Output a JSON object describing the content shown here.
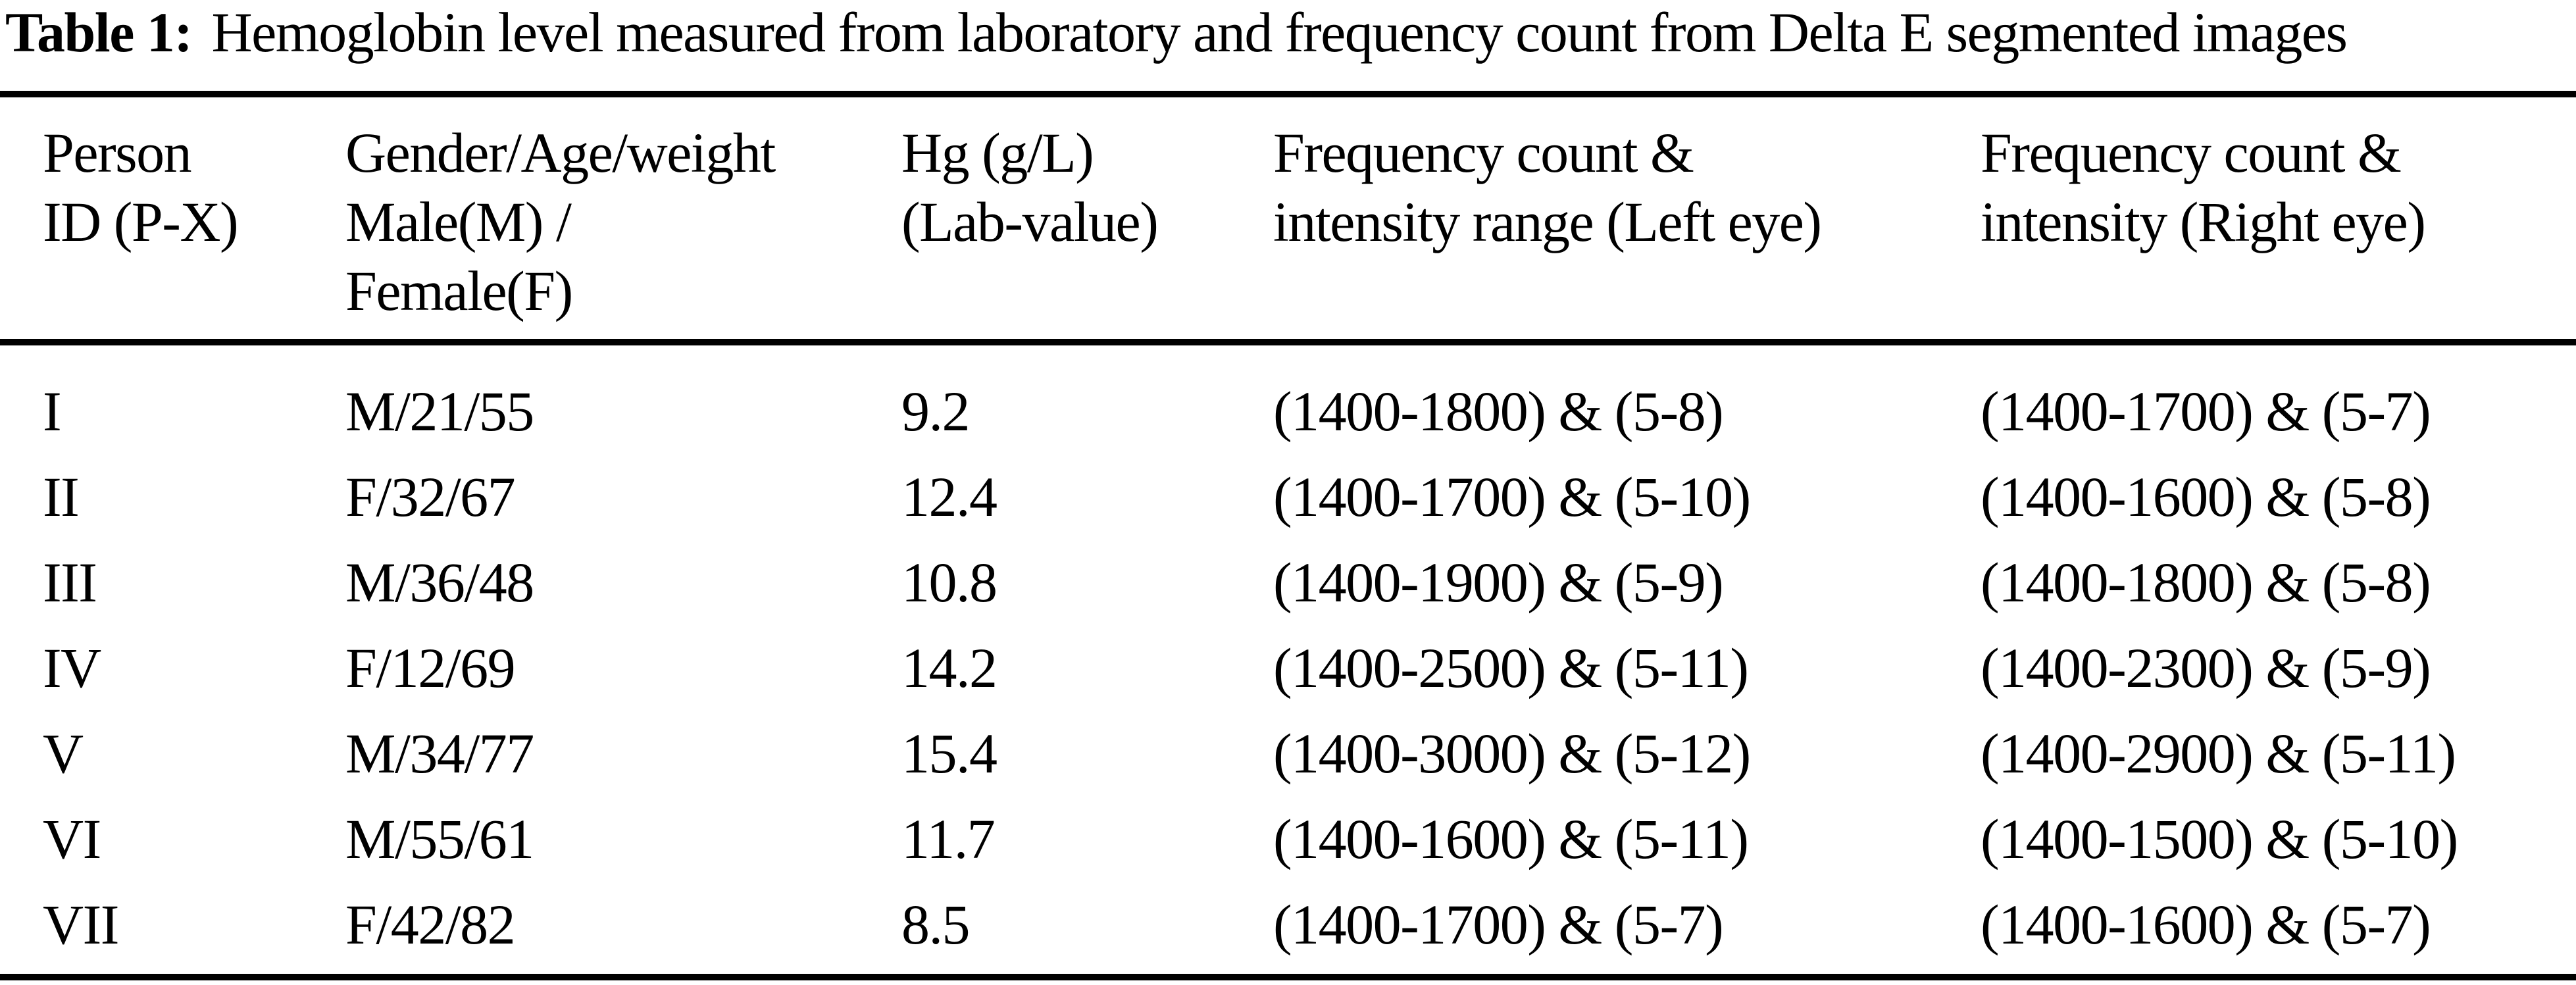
{
  "caption": {
    "label": "Table 1:",
    "text": "Hemoglobin level measured from laboratory and frequency count from Delta E segmented images"
  },
  "table": {
    "columns": [
      {
        "header": [
          "Person",
          "ID (P-X)"
        ]
      },
      {
        "header": [
          "Gender/Age/weight",
          "Male(M) /",
          "Female(F)"
        ]
      },
      {
        "header": [
          "Hg (g/L)",
          "(Lab-value)"
        ]
      },
      {
        "header": [
          "Frequency count &",
          "intensity range (Left eye)"
        ]
      },
      {
        "header": [
          "Frequency count &",
          "intensity (Right eye)"
        ]
      }
    ],
    "rows": [
      [
        "I",
        "M/21/55",
        "9.2",
        "(1400-1800) & (5-8)",
        "(1400-1700) & (5-7)"
      ],
      [
        "II",
        "F/32/67",
        "12.4",
        "(1400-1700) & (5-10)",
        "(1400-1600) & (5-8)"
      ],
      [
        "III",
        "M/36/48",
        "10.8",
        "(1400-1900) & (5-9)",
        "(1400-1800) & (5-8)"
      ],
      [
        "IV",
        "F/12/69",
        "14.2",
        "(1400-2500) & (5-11)",
        "(1400-2300) & (5-9)"
      ],
      [
        "V",
        "M/34/77",
        "15.4",
        "(1400-3000) & (5-12)",
        "(1400-2900) & (5-11)"
      ],
      [
        "VI",
        "M/55/61",
        "11.7",
        "(1400-1600) & (5-11)",
        "(1400-1500) & (5-10)"
      ],
      [
        "VII",
        "F/42/82",
        "8.5",
        "(1400-1700) & (5-7)",
        "(1400-1600) & (5-7)"
      ]
    ]
  },
  "colors": {
    "text": "#000000",
    "background": "#ffffff",
    "rule": "#000000"
  }
}
